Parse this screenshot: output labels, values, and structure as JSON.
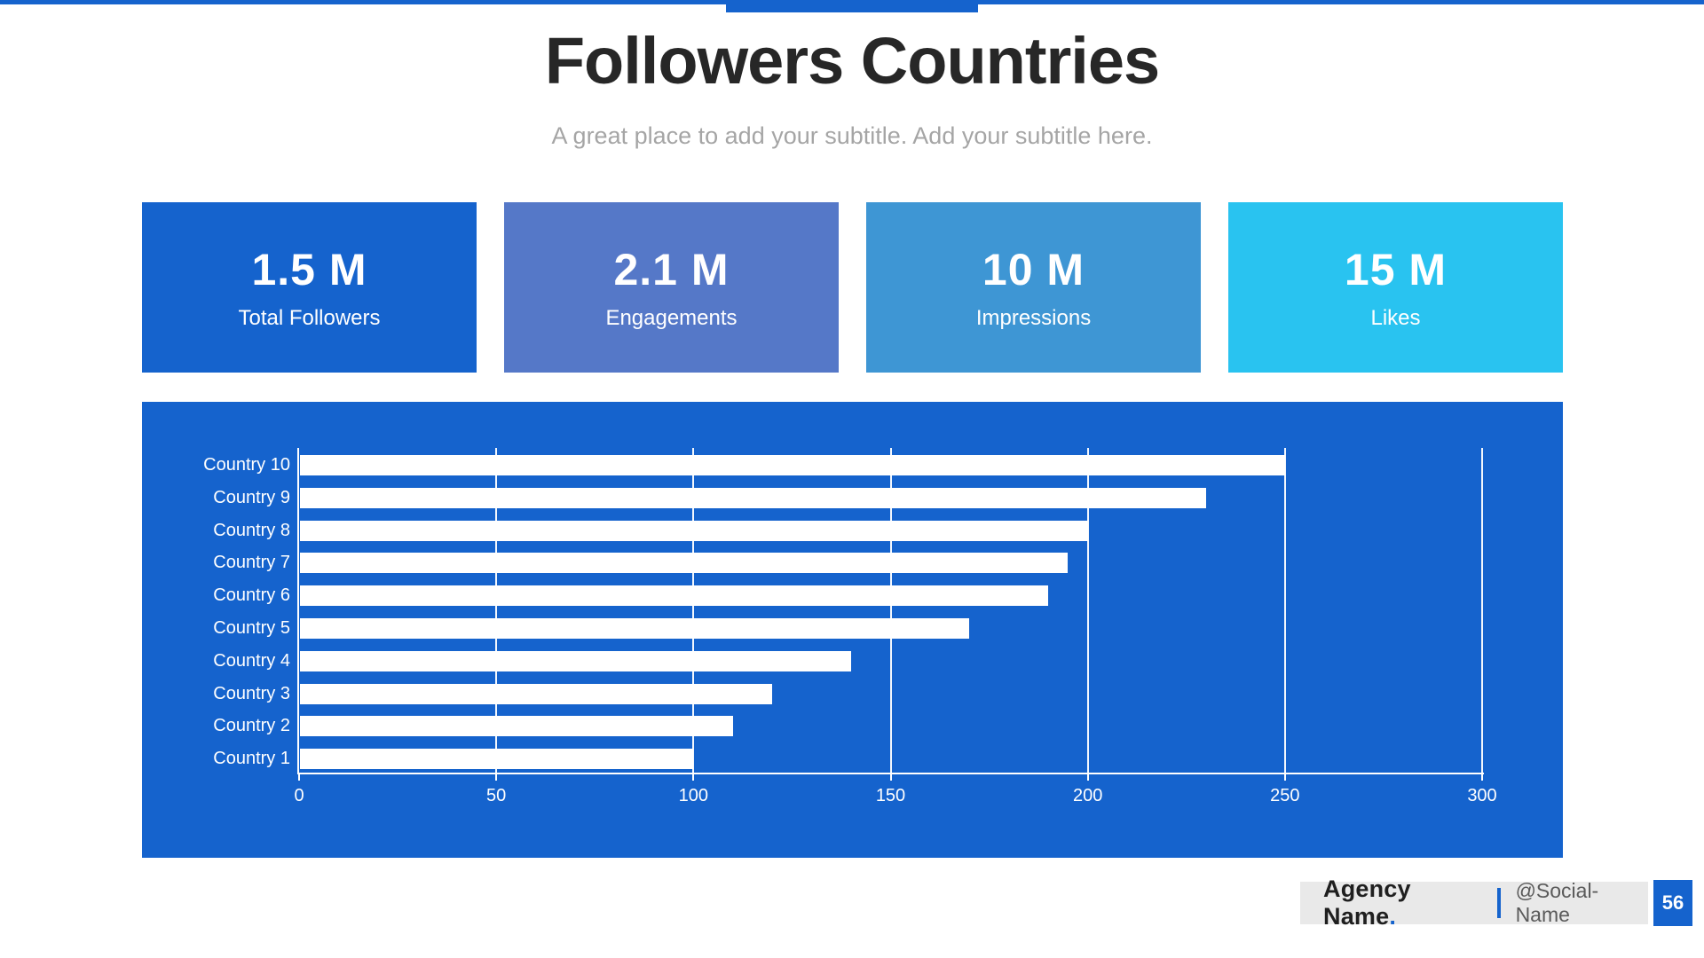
{
  "theme": {
    "brand_blue": "#1563CD",
    "footer_gray": "#E9E9E9",
    "title_color": "#272727",
    "subtitle_color": "#A5A5A5"
  },
  "header": {
    "title": "Followers Countries",
    "subtitle": "A great place to add your subtitle. Add your subtitle here."
  },
  "stats": {
    "items": [
      {
        "value": "1.5 M",
        "label": "Total Followers",
        "color": "#1563CD"
      },
      {
        "value": "2.1 M",
        "label": "Engagements",
        "color": "#5578C8"
      },
      {
        "value": "10 M",
        "label": "Impressions",
        "color": "#3E96D4"
      },
      {
        "value": "15 M",
        "label": "Likes",
        "color": "#29C3F0"
      }
    ]
  },
  "chart_data": {
    "type": "bar",
    "orientation": "horizontal",
    "title": "",
    "categories": [
      "Country 10",
      "Country 9",
      "Country 8",
      "Country 7",
      "Country 6",
      "Country 5",
      "Country 4",
      "Country 3",
      "Country 2",
      "Country 1"
    ],
    "values": [
      250,
      230,
      200,
      195,
      190,
      170,
      140,
      120,
      110,
      100
    ],
    "xlabel": "",
    "ylabel": "",
    "xlim": [
      0,
      300
    ],
    "xticks": [
      0,
      50,
      100,
      150,
      200,
      250,
      300
    ],
    "grid": true,
    "legend": false,
    "panel_color": "#1563CD",
    "bar_color": "#FFFFFF",
    "text_color": "#FFFFFF"
  },
  "footer": {
    "agency_name": "Agency Name",
    "agency_dot": ".",
    "social_handle": "@Social-Name",
    "page_number": "56"
  }
}
